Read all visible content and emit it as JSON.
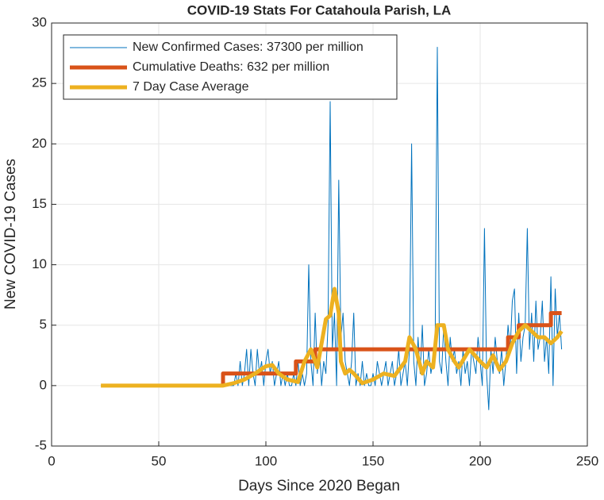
{
  "chart_data": {
    "type": "line",
    "title": "COVID-19 Stats For Catahoula Parish, LA",
    "xlabel": "Days Since 2020 Began",
    "ylabel": "New COVID-19 Cases",
    "xlim": [
      0,
      250
    ],
    "xticks": [
      0,
      50,
      100,
      150,
      200,
      250
    ],
    "ylim": [
      -5,
      30
    ],
    "yticks": [
      -5,
      0,
      5,
      10,
      15,
      20,
      25,
      30
    ],
    "grid": true,
    "legend": "northwest",
    "series": [
      {
        "name": "New Confirmed Cases: 37300 per million",
        "color": "#0072bd",
        "linewidth": 1,
        "x": [
          23,
          84,
          85,
          86,
          87,
          88,
          89,
          90,
          91,
          92,
          93,
          94,
          95,
          96,
          97,
          98,
          99,
          100,
          101,
          102,
          103,
          104,
          105,
          106,
          107,
          108,
          109,
          110,
          111,
          112,
          113,
          114,
          115,
          116,
          117,
          118,
          119,
          120,
          121,
          122,
          123,
          124,
          125,
          126,
          127,
          128,
          129,
          130,
          131,
          132,
          133,
          134,
          135,
          136,
          137,
          138,
          139,
          140,
          141,
          142,
          143,
          144,
          145,
          146,
          147,
          148,
          149,
          150,
          151,
          152,
          153,
          154,
          155,
          156,
          157,
          158,
          159,
          160,
          161,
          162,
          163,
          164,
          165,
          166,
          167,
          168,
          169,
          170,
          171,
          172,
          173,
          174,
          175,
          176,
          177,
          178,
          179,
          180,
          181,
          182,
          183,
          184,
          185,
          186,
          187,
          188,
          189,
          190,
          191,
          192,
          193,
          194,
          195,
          196,
          197,
          198,
          199,
          200,
          201,
          202,
          203,
          204,
          205,
          206,
          207,
          208,
          209,
          210,
          211,
          212,
          213,
          214,
          215,
          216,
          217,
          218,
          219,
          220,
          221,
          222,
          223,
          224,
          225,
          226,
          227,
          228,
          229,
          230,
          231,
          232,
          233,
          234,
          235,
          236,
          237,
          238
        ],
        "values": [
          0,
          0,
          0,
          1,
          0,
          2,
          0,
          1,
          3,
          0,
          3,
          1,
          0,
          3,
          1,
          2,
          0,
          2,
          3,
          1,
          2,
          0,
          1,
          2,
          0,
          1,
          0,
          1,
          0,
          0,
          1,
          0,
          2,
          0,
          1,
          0,
          1,
          10,
          2,
          0,
          6,
          1,
          3,
          0,
          2,
          1,
          5,
          23.5,
          3,
          6,
          0,
          17,
          4,
          6,
          2,
          1,
          0,
          2,
          6,
          0,
          1,
          0,
          2,
          0,
          1,
          0,
          0,
          1,
          0,
          2,
          1,
          0,
          1,
          2,
          0,
          1,
          2,
          0,
          1,
          3,
          0,
          1,
          2,
          0,
          3,
          20,
          2,
          0,
          4,
          1,
          5,
          0,
          1,
          3,
          1,
          2,
          4,
          28,
          2,
          1,
          5,
          2,
          0,
          4,
          2,
          3,
          1,
          2,
          0,
          3,
          1,
          2,
          0,
          3,
          2,
          1,
          4,
          2,
          0,
          13,
          1,
          -2,
          3,
          1,
          4,
          2,
          1,
          3,
          0,
          2,
          5,
          3,
          7,
          8,
          1,
          6,
          2,
          4,
          5,
          13,
          3,
          6,
          2,
          7,
          3,
          4,
          7,
          2,
          4,
          1,
          9,
          0,
          8,
          4,
          6,
          3
        ]
      },
      {
        "name": "Cumulative Deaths: 632 per million",
        "color": "#d95319",
        "linewidth": 5,
        "x": [
          80,
          80,
          114,
          114,
          123,
          123,
          213,
          213,
          218,
          218,
          233,
          233,
          238
        ],
        "values": [
          0,
          1,
          1,
          2,
          2,
          3,
          3,
          4,
          4,
          5,
          5,
          6,
          6
        ]
      },
      {
        "name": "7 Day Case Average",
        "color": "#edb120",
        "linewidth": 5,
        "x": [
          23,
          80,
          85,
          90,
          95,
          100,
          103,
          106,
          110,
          115,
          118,
          121,
          124,
          126,
          128,
          130,
          132,
          134,
          135,
          137,
          139,
          141,
          145,
          150,
          155,
          160,
          165,
          167,
          170,
          173,
          175,
          178,
          180,
          183,
          185,
          188,
          190,
          195,
          200,
          203,
          206,
          209,
          212,
          215,
          218,
          221,
          224,
          227,
          230,
          233,
          236,
          238
        ],
        "values": [
          0,
          0,
          0.2,
          0.5,
          1,
          1.6,
          1.7,
          1,
          0.5,
          0.3,
          2,
          3,
          1.5,
          3.5,
          5.5,
          5.8,
          8,
          6,
          2,
          1,
          1.3,
          1,
          0.2,
          0.5,
          1,
          0.8,
          2,
          4,
          3,
          1,
          2,
          1.5,
          5,
          5,
          3,
          2,
          1.5,
          3,
          2,
          1.5,
          2.5,
          1.3,
          2,
          3.5,
          4.5,
          5,
          4.5,
          4,
          4,
          3.5,
          4,
          4.5
        ]
      }
    ]
  }
}
